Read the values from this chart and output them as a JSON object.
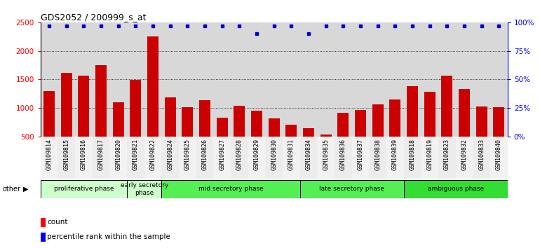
{
  "title": "GDS2052 / 200999_s_at",
  "samples": [
    "GSM109814",
    "GSM109815",
    "GSM109816",
    "GSM109817",
    "GSM109820",
    "GSM109821",
    "GSM109822",
    "GSM109824",
    "GSM109825",
    "GSM109826",
    "GSM109827",
    "GSM109828",
    "GSM109829",
    "GSM109830",
    "GSM109831",
    "GSM109834",
    "GSM109835",
    "GSM109836",
    "GSM109837",
    "GSM109838",
    "GSM109839",
    "GSM109818",
    "GSM109819",
    "GSM109823",
    "GSM109832",
    "GSM109833",
    "GSM109840"
  ],
  "counts": [
    1300,
    1620,
    1560,
    1750,
    1100,
    1490,
    2250,
    1180,
    1010,
    1130,
    830,
    1040,
    950,
    820,
    700,
    640,
    530,
    910,
    960,
    1060,
    1150,
    1380,
    1280,
    1560,
    1330,
    1020,
    1010
  ],
  "percentiles": [
    97,
    97,
    97,
    97,
    97,
    97,
    97,
    97,
    97,
    97,
    97,
    97,
    90,
    97,
    97,
    90,
    97,
    97,
    97,
    97,
    97,
    97,
    97,
    97,
    97,
    97,
    97
  ],
  "bar_color": "#cc0000",
  "dot_color": "#0000cc",
  "ylim_left": [
    500,
    2500
  ],
  "ylim_right": [
    0,
    100
  ],
  "yticks_left": [
    500,
    1000,
    1500,
    2000,
    2500
  ],
  "yticks_right": [
    0,
    25,
    50,
    75,
    100
  ],
  "phase_definitions": [
    {
      "label": "proliferative phase",
      "start": 0,
      "end": 5,
      "color": "#ccffcc"
    },
    {
      "label": "early secretory\nphase",
      "start": 5,
      "end": 7,
      "color": "#ccffcc"
    },
    {
      "label": "mid secretory phase",
      "start": 7,
      "end": 15,
      "color": "#55ee55"
    },
    {
      "label": "late secretory phase",
      "start": 15,
      "end": 21,
      "color": "#55ee55"
    },
    {
      "label": "ambiguous phase",
      "start": 21,
      "end": 27,
      "color": "#33dd33"
    }
  ],
  "bg_color": "#d8d8d8",
  "grid_color": "#000000"
}
